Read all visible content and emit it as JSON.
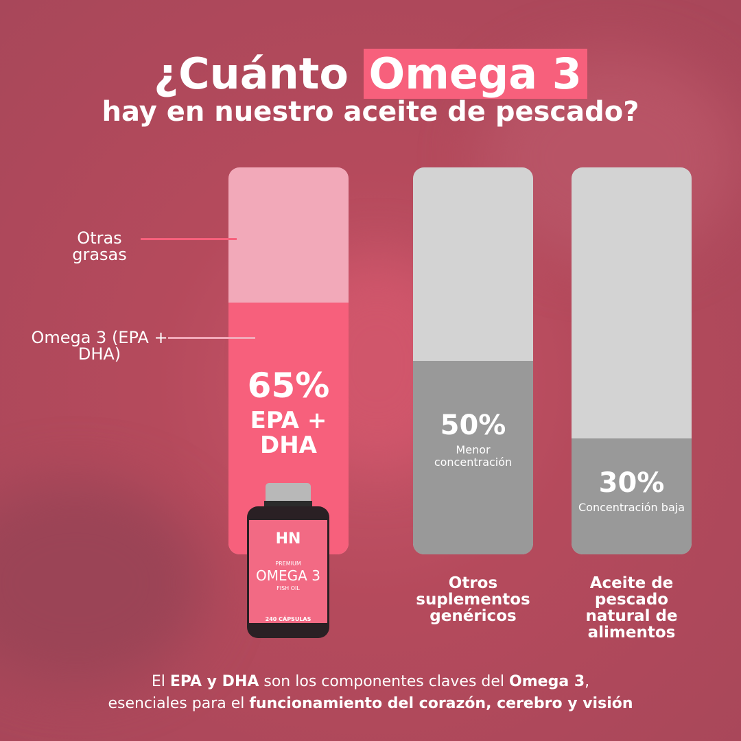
{
  "chart_data": {
    "type": "bar",
    "title": "¿Cuánto",
    "title_highlight": "Omega 3",
    "subtitle": "hay en nuestro aceite de pescado?",
    "categories": [
      null,
      "Otros suplementos genéricos",
      "Aceite de pescado natural de alimentos"
    ],
    "values": [
      65,
      50,
      30
    ],
    "value_labels": [
      "65%",
      "50%",
      "30%"
    ],
    "descriptions": [
      "EPA + DHA",
      "Menor concentración",
      "Concentración baja"
    ],
    "colors": [
      "#f7607c",
      "#999999",
      "#999999"
    ],
    "track_colors": [
      "#f2a9b9",
      "#d3d3d3",
      "#d3d3d3"
    ],
    "ylim": [
      0,
      100
    ],
    "annotations": [
      "Otras grasas",
      "Omega 3 (EPA + DHA)"
    ],
    "product": {
      "line": "PREMIUM",
      "name": "OMEGA 3",
      "sub": "FISH OIL",
      "count": "240 CÁPSULAS"
    },
    "footer": [
      [
        {
          "text": "El ",
          "bold": false
        },
        {
          "text": "EPA y DHA",
          "bold": true
        },
        {
          "text": " son los componentes claves del ",
          "bold": false
        },
        {
          "text": "Omega 3",
          "bold": true
        },
        {
          "text": ",",
          "bold": false
        }
      ],
      [
        {
          "text": "esenciales para el ",
          "bold": false
        },
        {
          "text": "funcionamiento del corazón, cerebro y visión",
          "bold": true
        }
      ]
    ]
  }
}
